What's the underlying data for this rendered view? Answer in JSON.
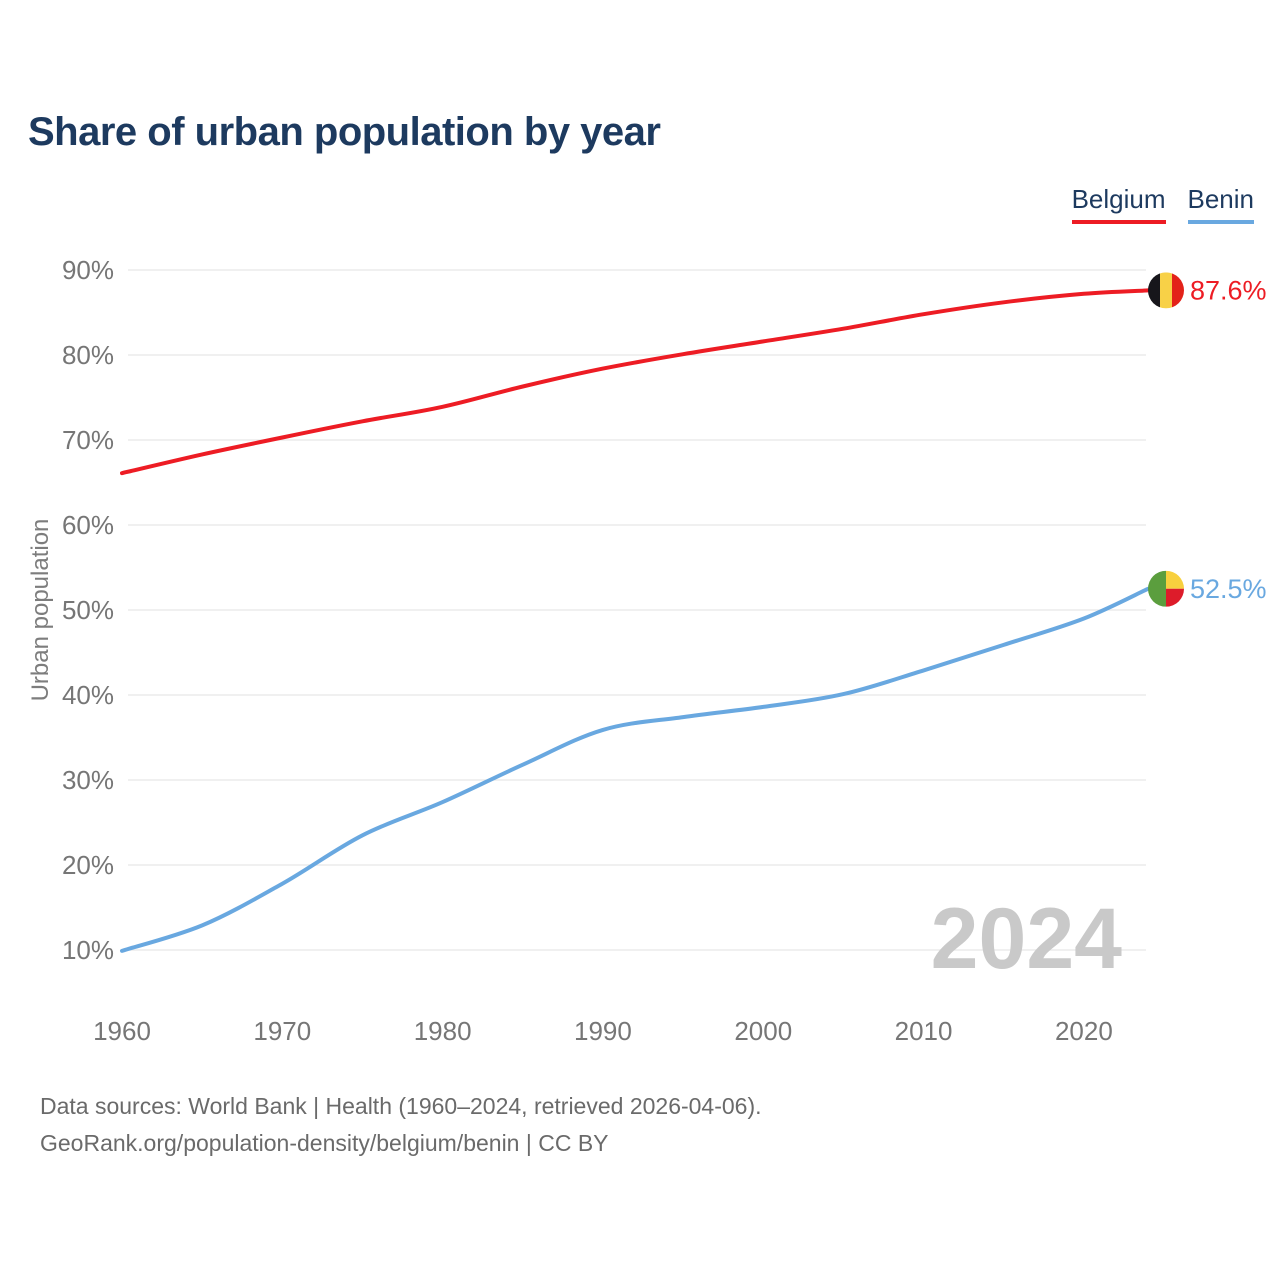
{
  "title": "Share of urban population by year",
  "legend": {
    "items": [
      {
        "label": "Belgium",
        "color": "#ed1c24"
      },
      {
        "label": "Benin",
        "color": "#69a8e0"
      }
    ]
  },
  "watermark": "2024",
  "footer": {
    "line1": "Data sources: World Bank | Health (1960–2024, retrieved 2026-04-06).",
    "line2": "GeoRank.org/population-density/belgium/benin | CC BY"
  },
  "chart_data": {
    "type": "line",
    "title": "Share of urban population by year",
    "xlabel": "",
    "ylabel": "Urban population",
    "x": [
      1960,
      1965,
      1970,
      1975,
      1980,
      1985,
      1990,
      1995,
      2000,
      2005,
      2010,
      2015,
      2020,
      2024
    ],
    "series": [
      {
        "name": "Belgium",
        "color": "#ed1c24",
        "values": [
          66.1,
          68.3,
          70.3,
          72.2,
          73.9,
          76.3,
          78.4,
          80.1,
          81.6,
          83.1,
          84.8,
          86.2,
          87.2,
          87.6
        ],
        "end_label": "87.6%",
        "flag_icon": "belgium-flag-icon"
      },
      {
        "name": "Benin",
        "color": "#69a8e0",
        "values": [
          9.9,
          12.9,
          17.8,
          23.5,
          27.4,
          31.8,
          35.9,
          37.4,
          38.6,
          40.1,
          42.9,
          45.9,
          49.0,
          52.5
        ],
        "end_label": "52.5%",
        "flag_icon": "benin-flag-icon"
      }
    ],
    "xlim": [
      1960,
      2024
    ],
    "ylim": [
      10,
      90
    ],
    "y_ticks": [
      90,
      80,
      70,
      60,
      50,
      40,
      30,
      20,
      10
    ],
    "y_tick_labels": [
      "90%",
      "80%",
      "70%",
      "60%",
      "50%",
      "40%",
      "30%",
      "20%",
      "10%"
    ],
    "x_ticks": [
      1960,
      1970,
      1980,
      1990,
      2000,
      2010,
      2020
    ],
    "x_tick_labels": [
      "1960",
      "1970",
      "1980",
      "1990",
      "2000",
      "2010",
      "2020"
    ],
    "grid": "horizontal",
    "legend_position": "top-right",
    "flag_colors": {
      "belgium": {
        "black": "#17161b",
        "yellow": "#f8d147",
        "red": "#e32219"
      },
      "benin": {
        "green": "#5b9e3e",
        "yellow": "#f8d03e",
        "red": "#dd1c2a"
      }
    },
    "colors": {
      "grid": "#e7e7e7",
      "tick_text": "#767676",
      "axis_title_text": "#7d7d7d",
      "watermark_text": "#c9c9c9"
    }
  }
}
